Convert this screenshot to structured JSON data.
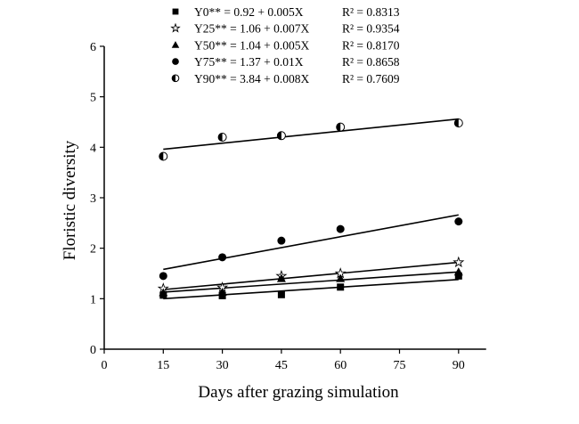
{
  "chart_data": {
    "type": "scatter",
    "title": "",
    "xlabel": "Days after grazing simulation",
    "ylabel": "Floristic diversity",
    "xlim": [
      0,
      97
    ],
    "ylim": [
      0,
      6
    ],
    "xticks": [
      0,
      15,
      30,
      45,
      60,
      75,
      90
    ],
    "yticks": [
      0,
      1,
      2,
      3,
      4,
      5,
      6
    ],
    "grid": false,
    "legend_position": "top",
    "x": [
      15,
      30,
      45,
      60,
      90
    ],
    "series": [
      {
        "name": "Y0",
        "marker": "square",
        "equation": "Y0**   = 0.92 + 0.005X",
        "r2": "R² = 0.8313",
        "values": [
          1.07,
          1.06,
          1.08,
          1.23,
          1.45
        ],
        "fit": [
          [
            15,
            1.0
          ],
          [
            90,
            1.38
          ]
        ]
      },
      {
        "name": "Y25",
        "marker": "star",
        "equation": "Y25** = 1.06 + 0.007X",
        "r2": "R² = 0.9354",
        "values": [
          1.2,
          1.22,
          1.45,
          1.5,
          1.72
        ],
        "fit": [
          [
            15,
            1.18
          ],
          [
            90,
            1.72
          ]
        ]
      },
      {
        "name": "Y50",
        "marker": "triangle",
        "equation": "Y50** = 1.04 + 0.005X",
        "r2": "R² = 0.8170",
        "values": [
          1.12,
          1.13,
          1.4,
          1.4,
          1.53
        ],
        "fit": [
          [
            15,
            1.13
          ],
          [
            90,
            1.53
          ]
        ]
      },
      {
        "name": "Y75",
        "marker": "circle",
        "equation": "Y75** = 1.37 + 0.01X",
        "r2": "R² = 0.8658",
        "values": [
          1.45,
          1.82,
          2.15,
          2.38,
          2.53
        ],
        "fit": [
          [
            15,
            1.58
          ],
          [
            90,
            2.66
          ]
        ]
      },
      {
        "name": "Y90",
        "marker": "half-circle",
        "equation": "Y90** = 3.84 + 0.008X",
        "r2": "R² = 0.7609",
        "values": [
          3.82,
          4.2,
          4.23,
          4.4,
          4.48
        ],
        "fit": [
          [
            15,
            3.96
          ],
          [
            90,
            4.56
          ]
        ]
      }
    ]
  }
}
